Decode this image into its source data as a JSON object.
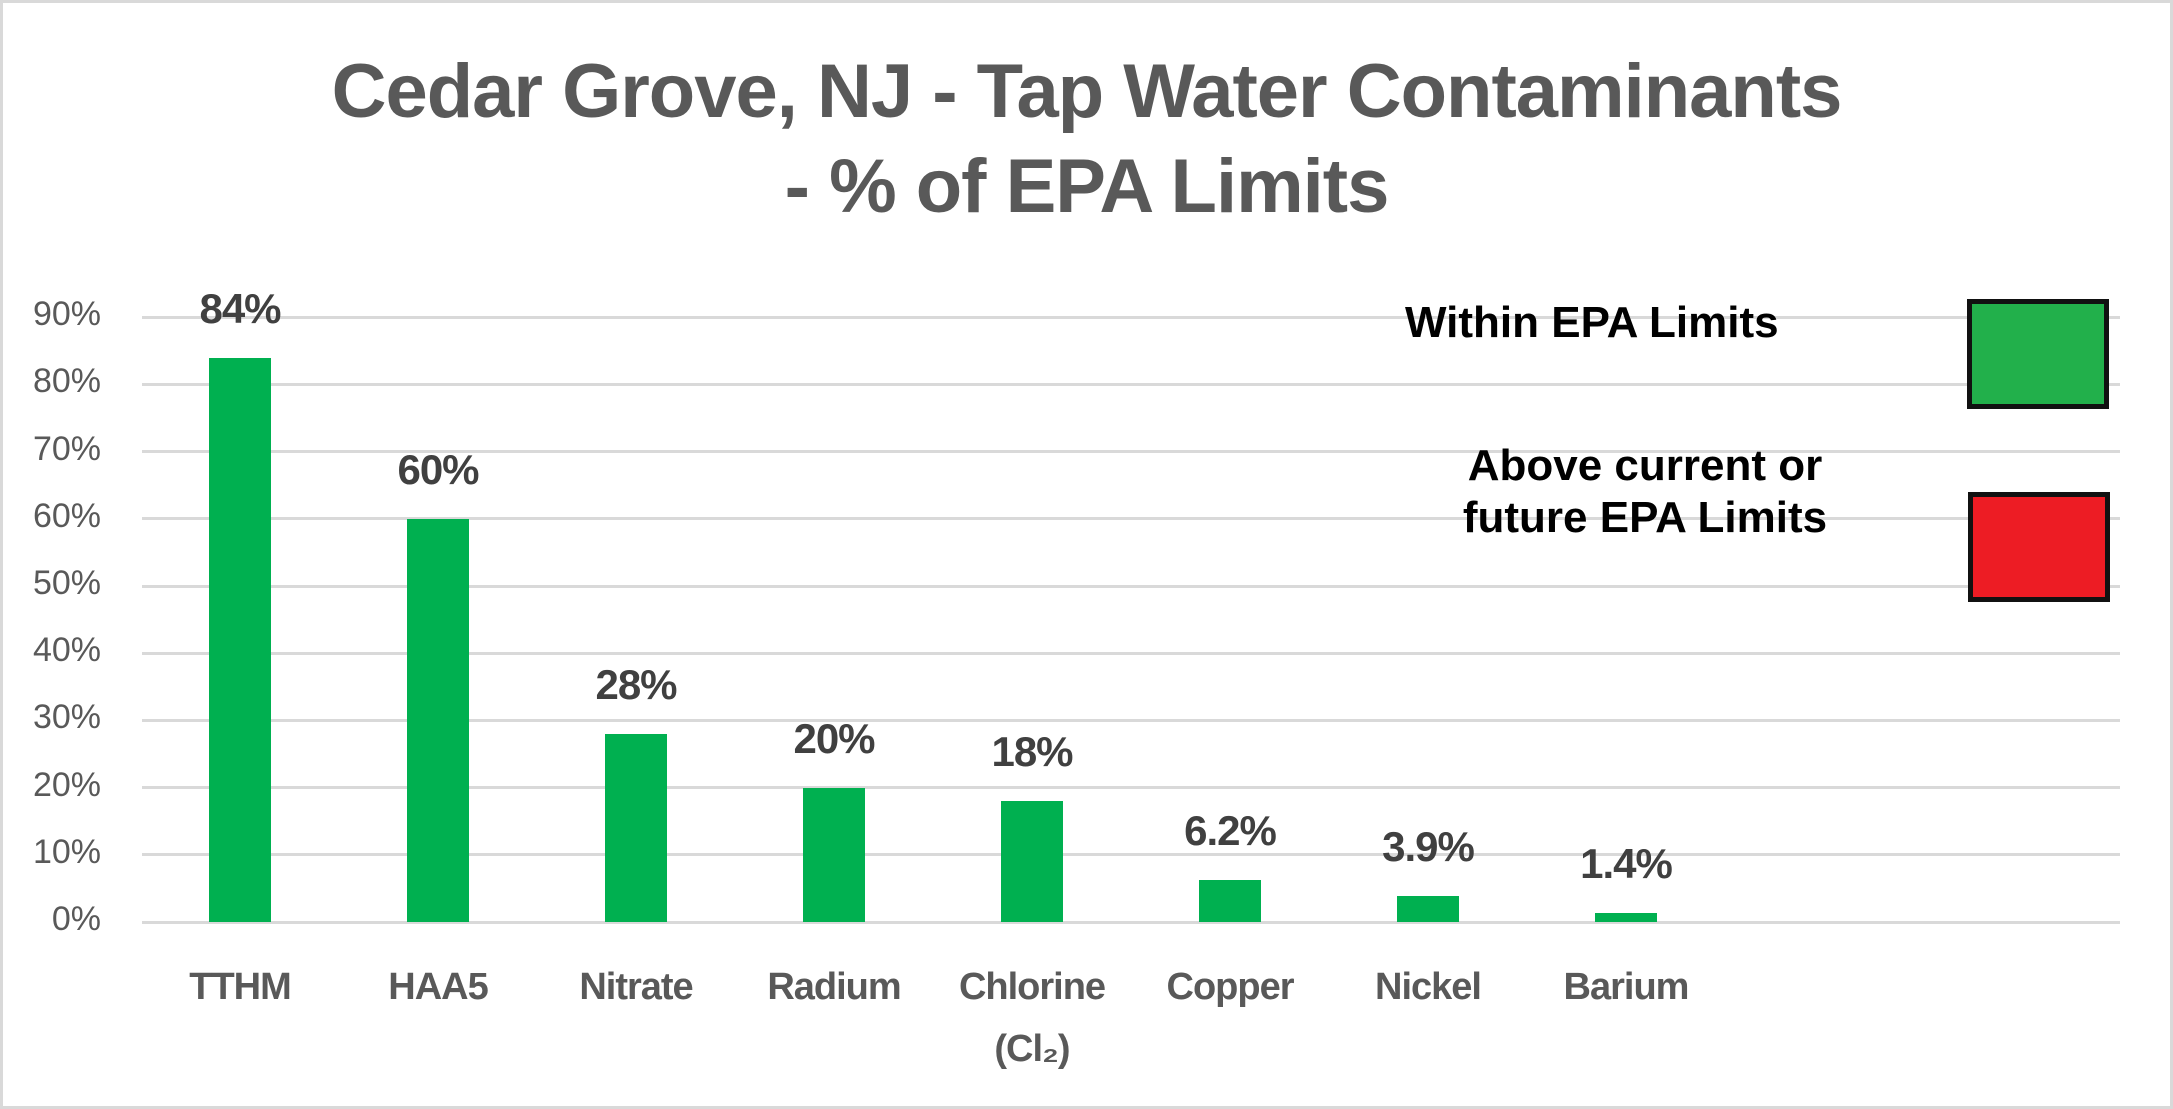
{
  "chart_data": {
    "type": "bar",
    "title": "Cedar Grove, NJ - Tap Water Contaminants - % of EPA  Limits",
    "title_lines": [
      "Cedar Grove, NJ - Tap Water Contaminants",
      "- % of EPA  Limits"
    ],
    "xlabel": "",
    "ylabel": "",
    "ylim": [
      0,
      0.9
    ],
    "yticks": [
      "0%",
      "10%",
      "20%",
      "30%",
      "40%",
      "50%",
      "60%",
      "70%",
      "80%",
      "90%"
    ],
    "grid": true,
    "categories": [
      "TTHM",
      "HAA5",
      "Nitrate",
      "Radium",
      "Chlorine (Cl₂)",
      "Copper",
      "Nickel",
      "Barium"
    ],
    "category_lines": [
      [
        "TTHM"
      ],
      [
        "HAA5"
      ],
      [
        "Nitrate"
      ],
      [
        "Radium"
      ],
      [
        "Chlorine",
        "(Cl₂)"
      ],
      [
        "Copper"
      ],
      [
        "Nickel"
      ],
      [
        "Barium"
      ]
    ],
    "values": [
      0.84,
      0.6,
      0.28,
      0.2,
      0.18,
      0.062,
      0.039,
      0.014
    ],
    "data_labels": [
      "84%",
      "60%",
      "28%",
      "20%",
      "18%",
      "6.2%",
      "3.9%",
      "1.4%"
    ],
    "bar_color": "#00b050",
    "legend": {
      "position": "top-right",
      "entries": [
        {
          "label": "Within EPA Limits",
          "lines": [
            "Within EPA Limits"
          ],
          "color": "#22b04b"
        },
        {
          "label": "Above current or future EPA Limits",
          "lines": [
            "Above current or",
            "future EPA Limits"
          ],
          "color": "#ed1c24"
        }
      ]
    }
  },
  "colors": {
    "title": "#595959",
    "axis_text": "#595959",
    "data_label": "#404040",
    "gridline": "#d9d9d9",
    "border": "#d9d9d9"
  }
}
